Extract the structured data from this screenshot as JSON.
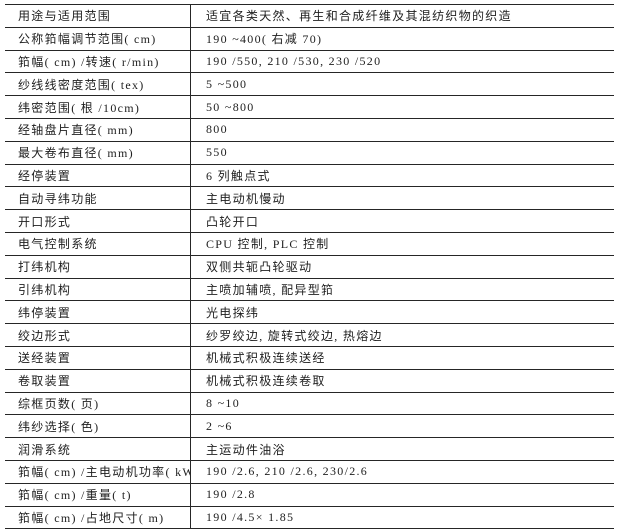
{
  "table": {
    "rows": [
      {
        "label": "用途与适用范围",
        "value": "适宜各类天然、再生和合成纤维及其混纺织物的织造"
      },
      {
        "label": "公称筘幅调节范围( cm)",
        "value": "190 ~400( 右减 70)"
      },
      {
        "label": "筘幅( cm) /转速( r/min)",
        "value": "190 /550, 210 /530, 230 /520"
      },
      {
        "label": "纱线线密度范围( tex)",
        "value": "5 ~500"
      },
      {
        "label": "纬密范围( 根 /10cm)",
        "value": "50 ~800"
      },
      {
        "label": "经轴盘片直径( mm)",
        "value": "800"
      },
      {
        "label": "最大卷布直径( mm)",
        "value": "550"
      },
      {
        "label": "经停装置",
        "value": "6 列触点式"
      },
      {
        "label": "自动寻纬功能",
        "value": "主电动机慢动"
      },
      {
        "label": "开口形式",
        "value": "凸轮开口"
      },
      {
        "label": "电气控制系统",
        "value": "CPU 控制, PLC 控制"
      },
      {
        "label": "打纬机构",
        "value": "双侧共轭凸轮驱动"
      },
      {
        "label": "引纬机构",
        "value": "主喷加辅喷, 配异型筘"
      },
      {
        "label": "纬停装置",
        "value": "光电探纬"
      },
      {
        "label": "绞边形式",
        "value": "纱罗绞边, 旋转式绞边, 热熔边"
      },
      {
        "label": "送经装置",
        "value": "机械式积极连续送经"
      },
      {
        "label": "卷取装置",
        "value": "机械式积极连续卷取"
      },
      {
        "label": "综框页数( 页)",
        "value": "8 ~10"
      },
      {
        "label": "纬纱选择( 色)",
        "value": "2 ~6"
      },
      {
        "label": "润滑系统",
        "value": "主运动件油浴"
      },
      {
        "label": "筘幅( cm) /主电动机功率( kW)",
        "value": "190 /2.6, 210 /2.6, 230/2.6"
      },
      {
        "label": "筘幅( cm) /重量( t)",
        "value": "190 /2.8"
      },
      {
        "label": "筘幅( cm) /占地尺寸( m)",
        "value": "190 /4.5× 1.85"
      }
    ]
  }
}
